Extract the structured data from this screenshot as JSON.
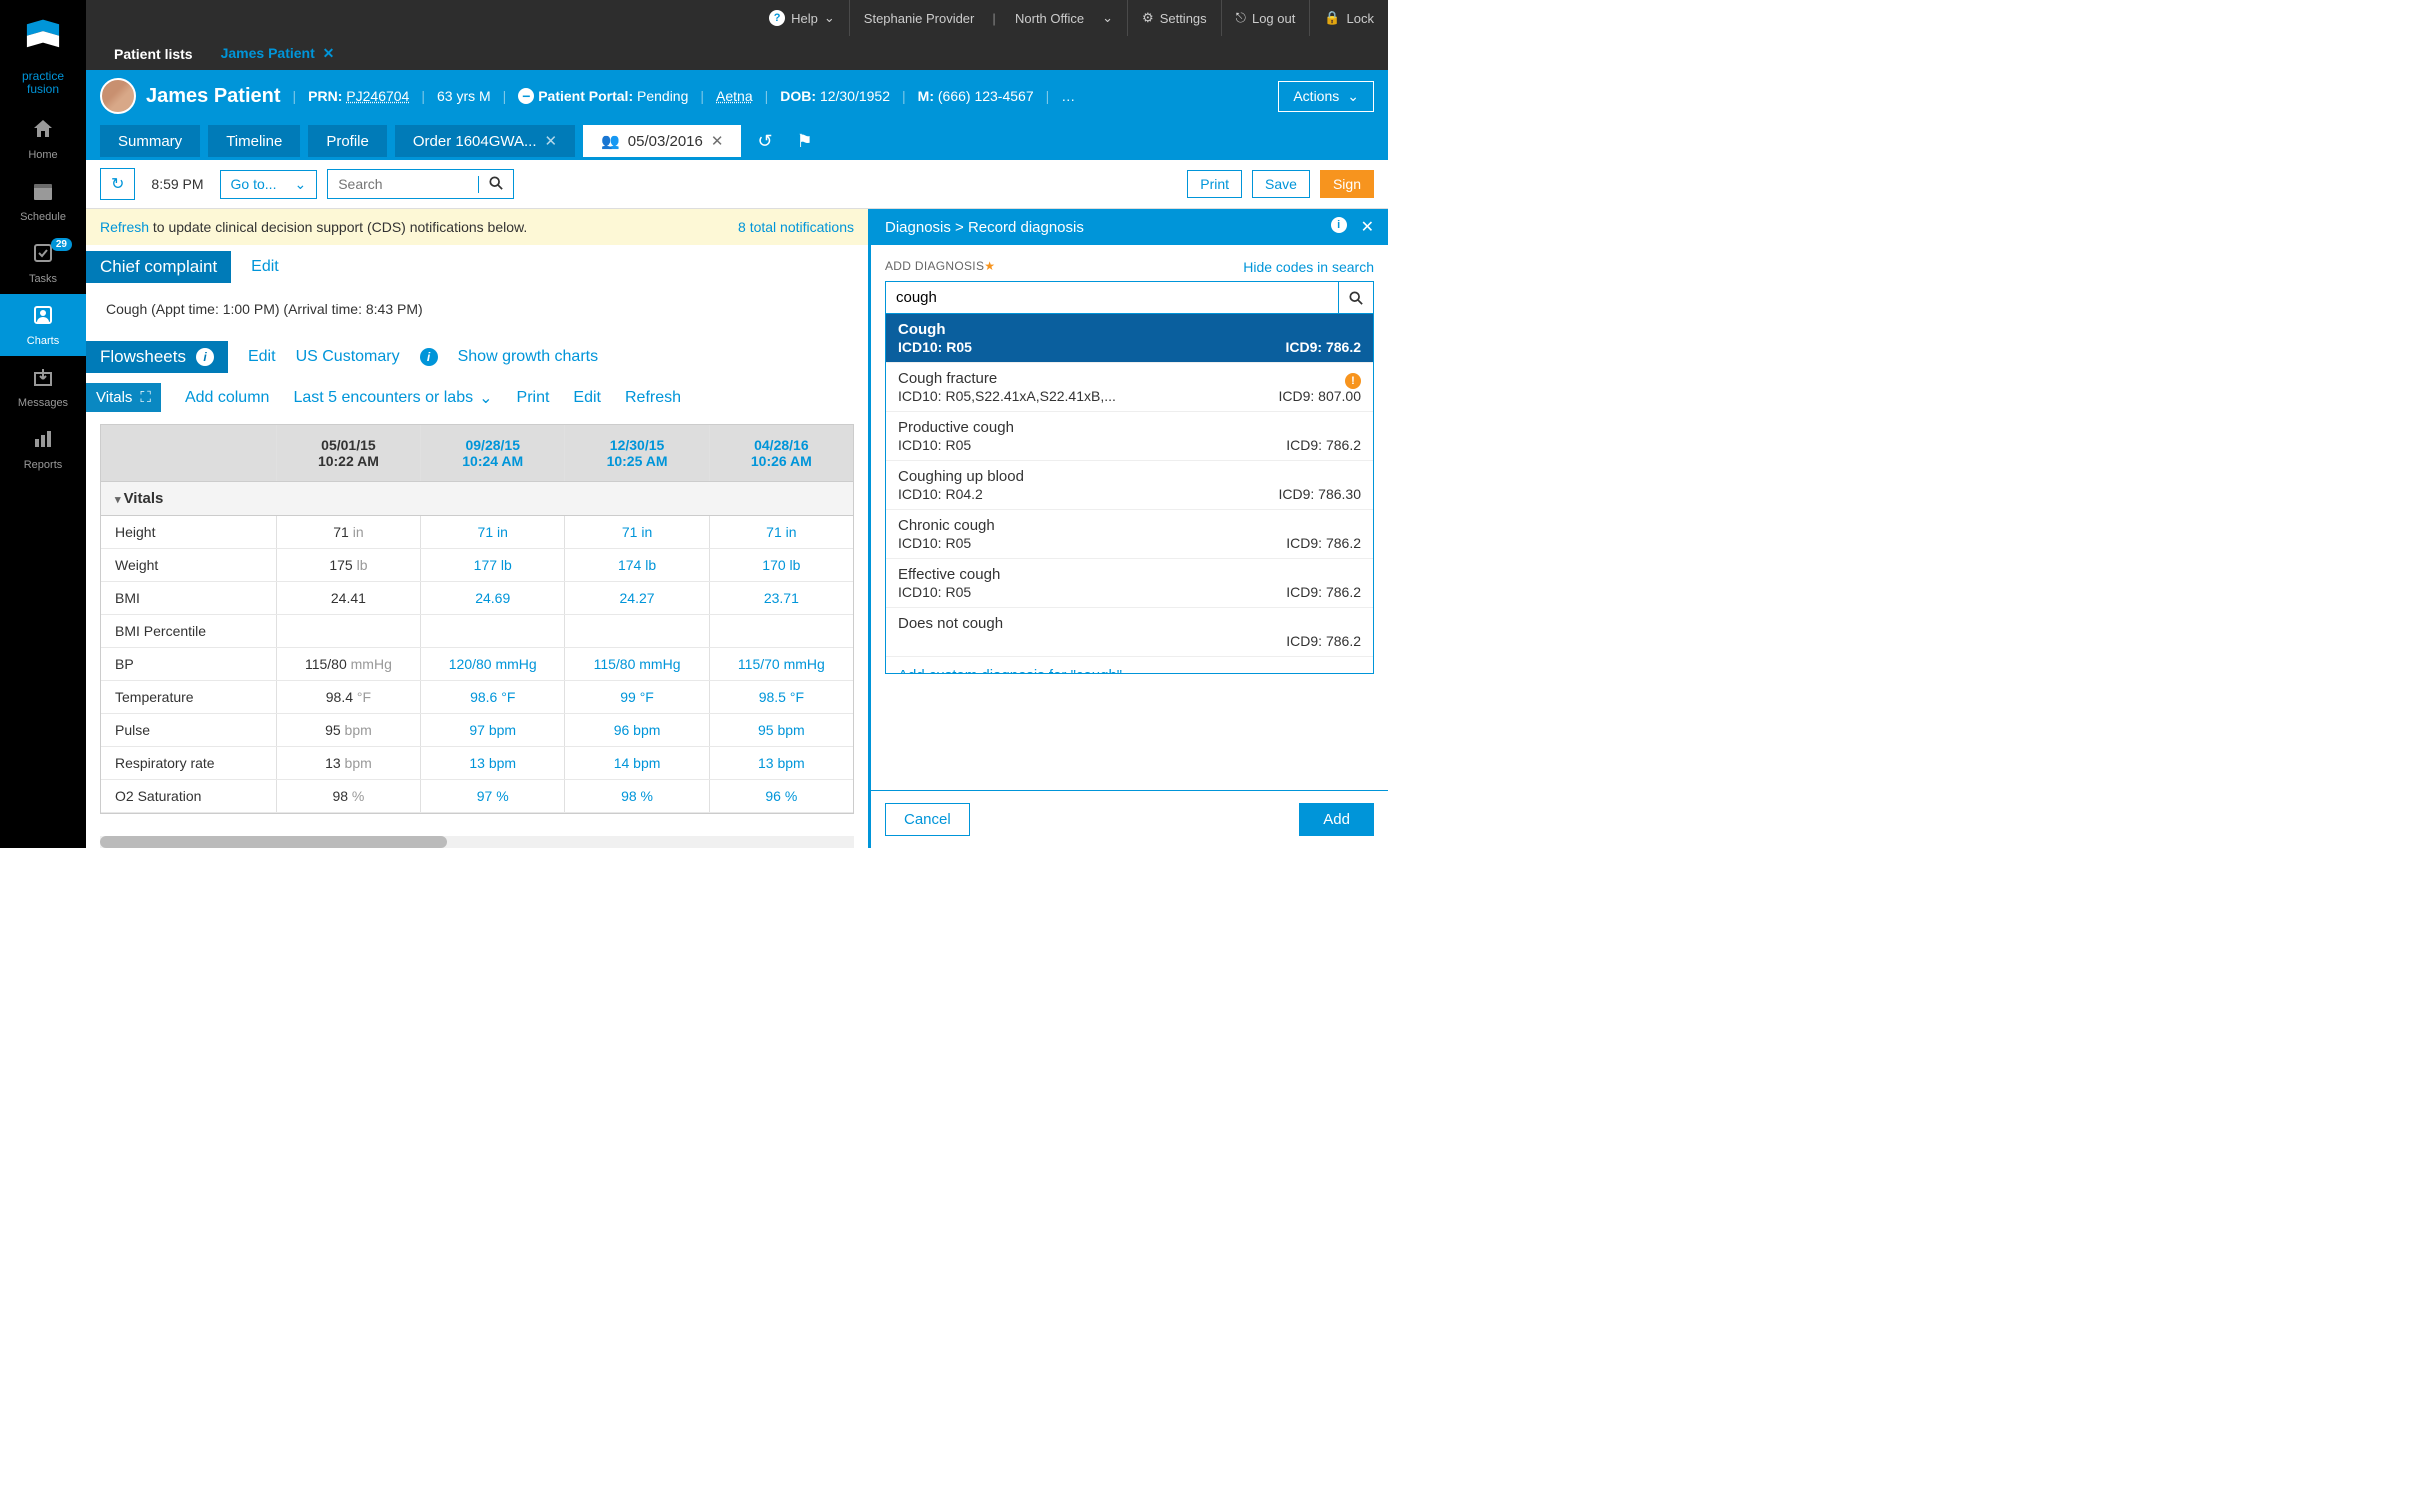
{
  "brand": {
    "line1": "practice",
    "line2": "fusion"
  },
  "nav": [
    {
      "label": "Home",
      "icon": "home",
      "active": false
    },
    {
      "label": "Schedule",
      "icon": "calendar",
      "active": false
    },
    {
      "label": "Tasks",
      "icon": "tasks",
      "active": false,
      "badge": "29"
    },
    {
      "label": "Charts",
      "icon": "user",
      "active": true
    },
    {
      "label": "Messages",
      "icon": "inbox",
      "active": false
    },
    {
      "label": "Reports",
      "icon": "bars",
      "active": false
    }
  ],
  "topbar": {
    "help": "Help",
    "user": "Stephanie Provider",
    "office": "North Office",
    "settings": "Settings",
    "logout": "Log out",
    "lock": "Lock"
  },
  "secondary_tabs": {
    "patient_lists": "Patient lists",
    "open_patient": "James Patient"
  },
  "patient": {
    "name": "James Patient",
    "prn_label": "PRN:",
    "prn": "PJ246704",
    "age_sex": "63 yrs M",
    "portal_label": "Patient Portal:",
    "portal_status": "Pending",
    "insurance": "Aetna",
    "dob_label": "DOB:",
    "dob": "12/30/1952",
    "mobile_label": "M:",
    "mobile": "(666) 123-4567",
    "more": "…",
    "actions": "Actions"
  },
  "chart_tabs": [
    {
      "label": "Summary"
    },
    {
      "label": "Timeline"
    },
    {
      "label": "Profile"
    },
    {
      "label": "Order 1604GWA...",
      "closeable": true
    },
    {
      "label": "05/03/2016",
      "closeable": true,
      "active": true,
      "icon": "people"
    }
  ],
  "toolbar": {
    "time": "8:59 PM",
    "goto": "Go to...",
    "search_placeholder": "Search",
    "print": "Print",
    "save": "Save",
    "sign": "Sign"
  },
  "notification": {
    "refresh": "Refresh",
    "text": " to update clinical decision support (CDS) notifications below.",
    "count": "8 total notifications"
  },
  "chief_complaint": {
    "title": "Chief complaint",
    "edit": "Edit",
    "text": "Cough  (Appt time: 1:00 PM) (Arrival time: 8:43 PM)"
  },
  "flowsheets": {
    "title": "Flowsheets",
    "edit": "Edit",
    "units": "US Customary",
    "growth": "Show growth charts"
  },
  "vitals_bar": {
    "vitals": "Vitals",
    "add_column": "Add column",
    "last5": "Last 5 encounters or labs",
    "print": "Print",
    "edit": "Edit",
    "refresh": "Refresh"
  },
  "vitals_table": {
    "columns": [
      {
        "date": "05/01/15",
        "time": "10:22 AM",
        "link": false
      },
      {
        "date": "09/28/15",
        "time": "10:24 AM",
        "link": true
      },
      {
        "date": "12/30/15",
        "time": "10:25 AM",
        "link": true
      },
      {
        "date": "04/28/16",
        "time": "10:26 AM",
        "link": true
      }
    ],
    "group": "Vitals",
    "rows": [
      {
        "label": "Height",
        "unit": "in",
        "values": [
          "71",
          "71",
          "71",
          "71"
        ]
      },
      {
        "label": "Weight",
        "unit": "lb",
        "values": [
          "175",
          "177",
          "174",
          "170"
        ]
      },
      {
        "label": "BMI",
        "unit": "",
        "values": [
          "24.41",
          "24.69",
          "24.27",
          "23.71"
        ]
      },
      {
        "label": "BMI Percentile",
        "unit": "",
        "values": [
          "",
          "",
          "",
          ""
        ]
      },
      {
        "label": "BP",
        "unit": "mmHg",
        "values": [
          "115/80",
          "120/80",
          "115/80",
          "115/70"
        ]
      },
      {
        "label": "Temperature",
        "unit": "°F",
        "values": [
          "98.4",
          "98.6",
          "99",
          "98.5"
        ]
      },
      {
        "label": "Pulse",
        "unit": "bpm",
        "values": [
          "95",
          "97",
          "96",
          "95"
        ]
      },
      {
        "label": "Respiratory rate",
        "unit": "bpm",
        "values": [
          "13",
          "13",
          "14",
          "13"
        ]
      },
      {
        "label": "O2 Saturation",
        "unit": "%",
        "values": [
          "98",
          "97",
          "98",
          "96"
        ]
      }
    ]
  },
  "diagnosis_panel": {
    "breadcrumb": "Diagnosis > Record diagnosis",
    "label": "ADD DIAGNOSIS",
    "hide_codes": "Hide codes in search",
    "search_value": "cough",
    "custom_prefix": "Add custom diagnosis for ",
    "custom_term": "\"cough\"",
    "results": [
      {
        "title": "Cough",
        "icd10": "ICD10: R05",
        "icd9": "ICD9: 786.2",
        "selected": true
      },
      {
        "title": "Cough fracture",
        "icd10": "ICD10: R05,S22.41xA,S22.41xB,...",
        "icd9": "ICD9: 807.00",
        "warn": true
      },
      {
        "title": "Productive cough",
        "icd10": "ICD10: R05",
        "icd9": "ICD9: 786.2"
      },
      {
        "title": "Coughing up blood",
        "icd10": "ICD10: R04.2",
        "icd9": "ICD9: 786.30"
      },
      {
        "title": "Chronic cough",
        "icd10": "ICD10: R05",
        "icd9": "ICD9: 786.2"
      },
      {
        "title": "Effective cough",
        "icd10": "ICD10: R05",
        "icd9": "ICD9: 786.2"
      },
      {
        "title": "Does not cough",
        "icd10": "",
        "icd9": "ICD9: 786.2"
      }
    ],
    "cancel": "Cancel",
    "add": "Add"
  },
  "colors": {
    "primary": "#0095d9",
    "primary_dark": "#007bb8",
    "accent": "#f7941e",
    "topbar_bg": "#2d2d2d",
    "sidebar_bg": "#000000",
    "notif_bg": "#fdf8d6",
    "selected_bg": "#0a5f9e"
  }
}
